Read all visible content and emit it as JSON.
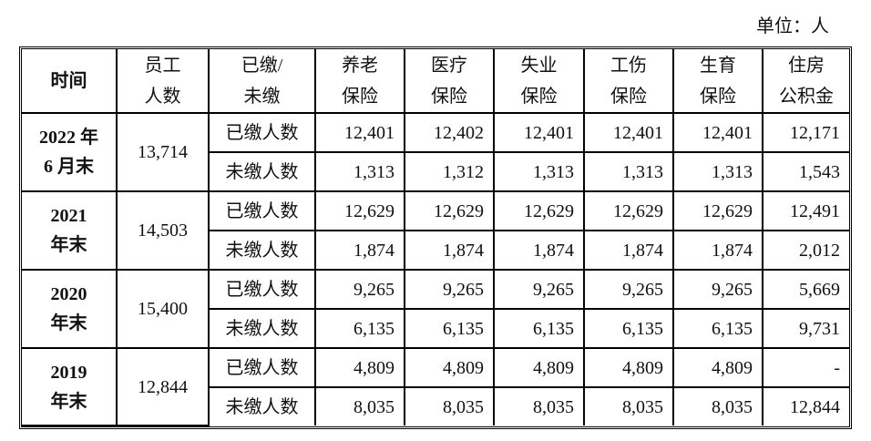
{
  "unit_label": "单位：人",
  "headers": {
    "time": "时间",
    "employees": [
      "员工",
      "人数"
    ],
    "status": [
      "已缴/",
      "未缴"
    ],
    "columns": [
      [
        "养老",
        "保险"
      ],
      [
        "医疗",
        "保险"
      ],
      [
        "失业",
        "保险"
      ],
      [
        "工伤",
        "保险"
      ],
      [
        "生育",
        "保险"
      ],
      [
        "住房",
        "公积金"
      ]
    ]
  },
  "periods": [
    {
      "time": [
        "2022 年",
        "6 月末"
      ],
      "employees": "13,714",
      "rows": [
        {
          "type": "已缴人数",
          "values": [
            "12,401",
            "12,402",
            "12,401",
            "12,401",
            "12,401",
            "12,171"
          ]
        },
        {
          "type": "未缴人数",
          "values": [
            "1,313",
            "1,312",
            "1,313",
            "1,313",
            "1,313",
            "1,543"
          ]
        }
      ]
    },
    {
      "time": [
        "2021",
        "年末"
      ],
      "employees": "14,503",
      "rows": [
        {
          "type": "已缴人数",
          "values": [
            "12,629",
            "12,629",
            "12,629",
            "12,629",
            "12,629",
            "12,491"
          ]
        },
        {
          "type": "未缴人数",
          "values": [
            "1,874",
            "1,874",
            "1,874",
            "1,874",
            "1,874",
            "2,012"
          ]
        }
      ]
    },
    {
      "time": [
        "2020",
        "年末"
      ],
      "employees": "15,400",
      "rows": [
        {
          "type": "已缴人数",
          "values": [
            "9,265",
            "9,265",
            "9,265",
            "9,265",
            "9,265",
            "5,669"
          ]
        },
        {
          "type": "未缴人数",
          "values": [
            "6,135",
            "6,135",
            "6,135",
            "6,135",
            "6,135",
            "9,731"
          ]
        }
      ]
    },
    {
      "time": [
        "2019",
        "年末"
      ],
      "employees": "12,844",
      "rows": [
        {
          "type": "已缴人数",
          "values": [
            "4,809",
            "4,809",
            "4,809",
            "4,809",
            "4,809",
            "-"
          ]
        },
        {
          "type": "未缴人数",
          "values": [
            "8,035",
            "8,035",
            "8,035",
            "8,035",
            "8,035",
            "12,844"
          ]
        }
      ]
    }
  ]
}
